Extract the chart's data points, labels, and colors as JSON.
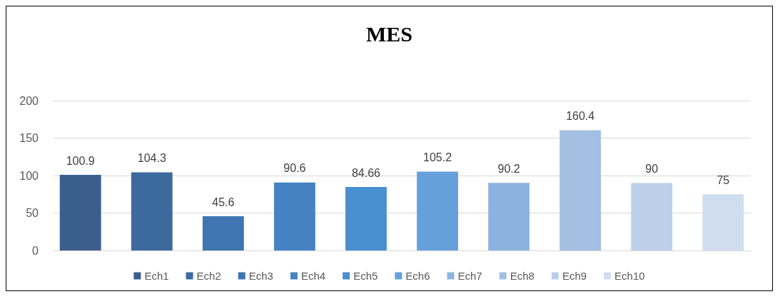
{
  "chart_data": {
    "type": "bar",
    "title": "MES",
    "categories": [
      null
    ],
    "series": [
      {
        "name": "Ech1",
        "color": "#3a5f8c",
        "values": [
          100.9
        ]
      },
      {
        "name": "Ech2",
        "color": "#3d6a9e",
        "values": [
          104.3
        ]
      },
      {
        "name": "Ech3",
        "color": "#3f75b0",
        "values": [
          45.6
        ]
      },
      {
        "name": "Ech4",
        "color": "#4582c2",
        "values": [
          90.6
        ]
      },
      {
        "name": "Ech5",
        "color": "#4a8fd0",
        "values": [
          84.66
        ]
      },
      {
        "name": "Ech6",
        "color": "#66a0da",
        "values": [
          105.2
        ]
      },
      {
        "name": "Ech7",
        "color": "#8cb2df",
        "values": [
          90.2
        ]
      },
      {
        "name": "Ech8",
        "color": "#a3bfe2",
        "values": [
          160.4
        ]
      },
      {
        "name": "Ech9",
        "color": "#bdd0ea",
        "values": [
          90
        ]
      },
      {
        "name": "Ech10",
        "color": "#d0ddf0",
        "values": [
          75
        ]
      }
    ],
    "ylim": [
      0,
      200
    ],
    "yticks": [
      0,
      50,
      100,
      150,
      200
    ],
    "grid": "y",
    "legend": "bottom",
    "data_labels": true
  }
}
